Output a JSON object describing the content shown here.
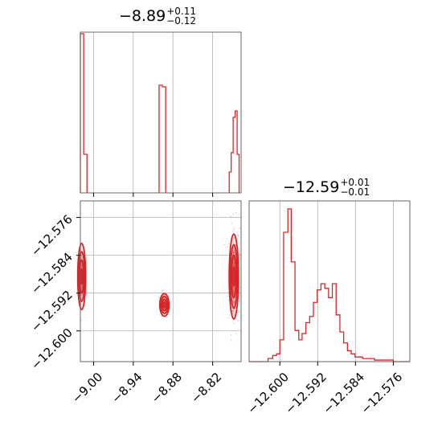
{
  "chart_data": [
    {
      "type": "histogram",
      "panel": "top-left",
      "title": {
        "value": "−8.89",
        "plus": "+0.11",
        "minus": "−0.12"
      },
      "x": {
        "range": [
          -9.02,
          -8.777
        ],
        "ticks": [
          -9.0,
          -8.94,
          -8.88,
          -8.82
        ]
      },
      "grid": true,
      "color": "#d62728",
      "bins": [
        {
          "x0": -9.02,
          "x1": -9.015,
          "h": 0.99
        },
        {
          "x0": -9.015,
          "x1": -9.01,
          "h": 0.24
        },
        {
          "x0": -8.901,
          "x1": -8.896,
          "h": 0.67
        },
        {
          "x0": -8.896,
          "x1": -8.891,
          "h": 0.66
        },
        {
          "x0": -8.795,
          "x1": -8.792,
          "h": 0.13
        },
        {
          "x0": -8.792,
          "x1": -8.789,
          "h": 0.25
        },
        {
          "x0": -8.789,
          "x1": -8.786,
          "h": 0.47
        },
        {
          "x0": -8.786,
          "x1": -8.783,
          "h": 0.51
        },
        {
          "x0": -8.783,
          "x1": -8.78,
          "h": 0.24
        }
      ]
    },
    {
      "type": "scatter",
      "panel": "bottom-left",
      "x": {
        "range": [
          -9.02,
          -8.777
        ],
        "ticks": [
          -9.0,
          -8.94,
          -8.88,
          -8.82
        ],
        "tick_labels": [
          "−9.00",
          "−8.94",
          "−8.88",
          "−8.82"
        ]
      },
      "y": {
        "range": [
          -12.6065,
          -12.5725
        ],
        "ticks": [
          -12.576,
          -12.584,
          -12.592,
          -12.6
        ],
        "tick_labels": [
          "−12.576",
          "−12.584",
          "−12.592",
          "−12.600"
        ]
      },
      "grid": true,
      "color": "#d62728",
      "clusters": [
        {
          "x": -9.018,
          "y": -12.5885,
          "sx": 0.003,
          "sy": 0.0035
        },
        {
          "x": -8.893,
          "y": -12.5945,
          "sx": 0.0035,
          "sy": 0.0012
        },
        {
          "x": -8.788,
          "y": -12.5885,
          "sx": 0.0035,
          "sy": 0.0045
        }
      ]
    },
    {
      "type": "histogram",
      "panel": "bottom-right",
      "title": {
        "value": "−12.59",
        "plus": "+0.01",
        "minus": "−0.01"
      },
      "x": {
        "range": [
          -12.6065,
          -12.5725
        ],
        "ticks": [
          -12.6,
          -12.592,
          -12.584,
          -12.576
        ],
        "tick_labels": [
          "−12.600",
          "−12.592",
          "−12.584",
          "−12.576"
        ]
      },
      "grid": true,
      "color": "#d62728",
      "steps": [
        [
          -12.6065,
          0.0
        ],
        [
          -12.6025,
          0.02
        ],
        [
          -12.6015,
          0.04
        ],
        [
          -12.6007,
          0.05
        ],
        [
          -12.6,
          0.14
        ],
        [
          -12.5992,
          0.83
        ],
        [
          -12.5983,
          0.98
        ],
        [
          -12.5976,
          0.64
        ],
        [
          -12.5968,
          0.2
        ],
        [
          -12.596,
          0.14
        ],
        [
          -12.5953,
          0.18
        ],
        [
          -12.5945,
          0.25
        ],
        [
          -12.5937,
          0.29
        ],
        [
          -12.5929,
          0.38
        ],
        [
          -12.5921,
          0.46
        ],
        [
          -12.5913,
          0.5
        ],
        [
          -12.5905,
          0.47
        ],
        [
          -12.5897,
          0.41
        ],
        [
          -12.5889,
          0.5
        ],
        [
          -12.5881,
          0.3
        ],
        [
          -12.5873,
          0.19
        ],
        [
          -12.5865,
          0.12
        ],
        [
          -12.5857,
          0.07
        ],
        [
          -12.5849,
          0.05
        ],
        [
          -12.5841,
          0.03
        ],
        [
          -12.5825,
          0.02
        ],
        [
          -12.58,
          0.01
        ],
        [
          -12.576,
          0.0
        ]
      ]
    }
  ]
}
